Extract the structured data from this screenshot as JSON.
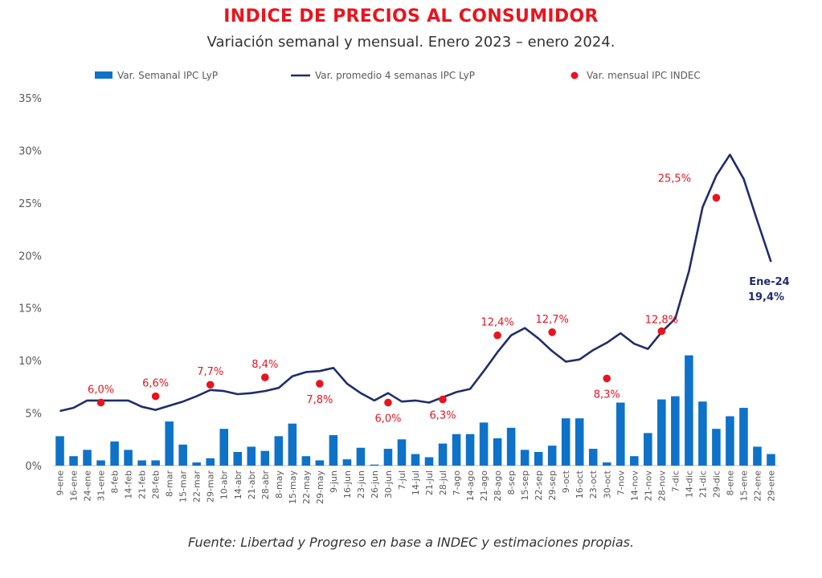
{
  "header": {
    "title": "INDICE DE PRECIOS AL CONSUMIDOR",
    "subtitle": "Variación semanal y mensual. Enero 2023 – enero 2024."
  },
  "footer": {
    "source": "Fuente: Libertad y Progreso en base a INDEC y estimaciones propias."
  },
  "colors": {
    "title": "#e8141e",
    "bars": "#0d72c8",
    "line": "#1f2d6b",
    "points": "#e8141e"
  },
  "chart_data": {
    "type": "bar",
    "title": "INDICE DE PRECIOS AL CONSUMIDOR",
    "subtitle": "Variación semanal y mensual. Enero 2023 – enero 2024.",
    "ylim": [
      0,
      35
    ],
    "yticks": [
      "0%",
      "5%",
      "10%",
      "15%",
      "20%",
      "25%",
      "30%",
      "35%"
    ],
    "legend_position": "top",
    "grid": false,
    "categories": [
      "9-ene",
      "16-ene",
      "24-ene",
      "31-ene",
      "8-feb",
      "14-feb",
      "21-feb",
      "28-feb",
      "8-mar",
      "15-mar",
      "22-mar",
      "29-mar",
      "10-abr",
      "14-abr",
      "21-abr",
      "28-abr",
      "8-may",
      "15-may",
      "22-may",
      "29-may",
      "9-jun",
      "16-jun",
      "23-jun",
      "26-jun",
      "30-jun",
      "7-jul",
      "14-jul",
      "21-jul",
      "28-jul",
      "7-ago",
      "14-ago",
      "21-ago",
      "28-ago",
      "8-sep",
      "15-sep",
      "22-sep",
      "29-sep",
      "9-oct",
      "16-oct",
      "23-oct",
      "30-oct",
      "7-nov",
      "14-nov",
      "21-nov",
      "28-nov",
      "7-dic",
      "14-dic",
      "21-dic",
      "29-dic",
      "8-ene",
      "15-ene",
      "22-ene",
      "29-ene"
    ],
    "series": [
      {
        "name": "Var. Semanal IPC LyP",
        "type": "bar",
        "values": [
          2.8,
          0.9,
          1.5,
          0.5,
          2.3,
          1.5,
          0.5,
          0.5,
          4.2,
          2.0,
          0.3,
          0.7,
          3.5,
          1.3,
          1.8,
          1.4,
          2.8,
          4.0,
          0.9,
          0.5,
          2.9,
          0.6,
          1.7,
          0.1,
          1.6,
          2.5,
          1.1,
          0.8,
          2.1,
          3.0,
          3.0,
          4.1,
          2.6,
          3.6,
          1.5,
          1.3,
          1.9,
          4.5,
          4.5,
          1.6,
          0.3,
          6.0,
          0.9,
          3.1,
          6.3,
          6.6,
          10.5,
          6.1,
          3.5,
          4.7,
          5.5,
          1.8,
          1.1
        ]
      },
      {
        "name": "Var. promedio 4 semanas IPC LyP",
        "type": "line",
        "values": [
          5.2,
          5.5,
          6.2,
          6.2,
          6.2,
          6.2,
          5.6,
          5.3,
          5.7,
          6.1,
          6.6,
          7.2,
          7.1,
          6.8,
          6.9,
          7.1,
          7.4,
          8.5,
          8.9,
          9.0,
          9.3,
          7.8,
          6.9,
          6.2,
          6.9,
          6.1,
          6.2,
          6.0,
          6.5,
          7.0,
          7.3,
          9.0,
          10.8,
          12.4,
          13.1,
          12.1,
          10.9,
          9.9,
          10.1,
          11.0,
          11.7,
          12.6,
          11.6,
          11.1,
          12.7,
          14.0,
          18.5,
          24.6,
          27.6,
          29.6,
          27.3,
          23.3,
          19.4
        ]
      },
      {
        "name": "Var. mensual IPC INDEC",
        "type": "scatter",
        "points": [
          {
            "x": "31-ene",
            "y": 6.0,
            "label": "6,0%"
          },
          {
            "x": "28-feb",
            "y": 6.6,
            "label": "6,6%"
          },
          {
            "x": "29-mar",
            "y": 7.7,
            "label": "7,7%"
          },
          {
            "x": "28-abr",
            "y": 8.4,
            "label": "8,4%"
          },
          {
            "x": "29-may",
            "y": 7.8,
            "label": "7,8%"
          },
          {
            "x": "30-jun",
            "y": 6.0,
            "label": "6,0%"
          },
          {
            "x": "28-jul",
            "y": 6.3,
            "label": "6,3%"
          },
          {
            "x": "28-ago",
            "y": 12.4,
            "label": "12,4%"
          },
          {
            "x": "29-sep",
            "y": 12.7,
            "label": "12,7%"
          },
          {
            "x": "30-oct",
            "y": 8.3,
            "label": "8,3%"
          },
          {
            "x": "28-nov",
            "y": 12.8,
            "label": "12,8%"
          },
          {
            "x": "29-dic",
            "y": 25.5,
            "label": "25,5%"
          }
        ]
      }
    ],
    "annotations": [
      {
        "x": "29-ene",
        "y": 19.4,
        "lines": [
          "Ene-24",
          "19,4%"
        ]
      }
    ]
  }
}
